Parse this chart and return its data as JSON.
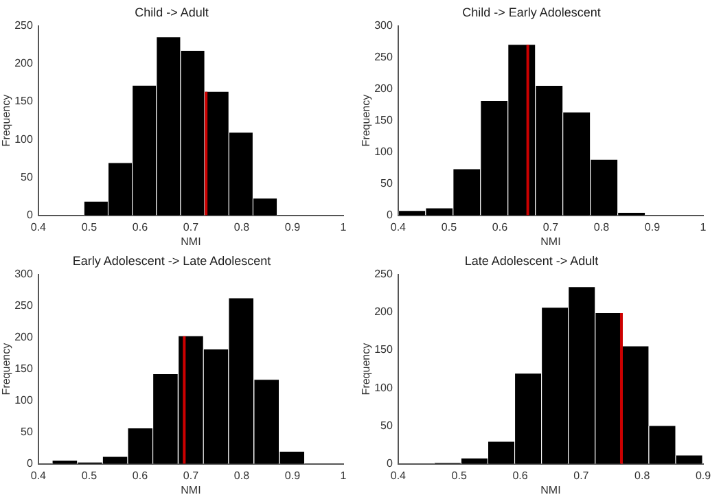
{
  "chart_data": [
    {
      "type": "histogram",
      "title": "Child -> Adult",
      "xlabel": "NMI",
      "ylabel": "Frequency",
      "color": "#000000",
      "bins": [
        0.49,
        0.537,
        0.585,
        0.632,
        0.68,
        0.727,
        0.775,
        0.822,
        0.87
      ],
      "values": [
        18,
        69,
        171,
        235,
        217,
        163,
        109,
        22
      ],
      "xlim": [
        0.4,
        1
      ],
      "xticks": [
        0.4,
        0.5,
        0.6,
        0.7,
        0.8,
        0.9,
        1
      ],
      "ylim": [
        0,
        250
      ],
      "yticks": [
        0,
        50,
        100,
        150,
        200,
        250
      ],
      "ref_lines": [
        {
          "axis": "x",
          "value": 0.73,
          "color": "#cc0000"
        }
      ],
      "grid": false,
      "legend": false
    },
    {
      "type": "histogram",
      "title": "Child -> Early Adolescent",
      "xlabel": "NMI",
      "ylabel": "Frequency",
      "color": "#000000",
      "bins": [
        0.4,
        0.454,
        0.508,
        0.562,
        0.616,
        0.67,
        0.724,
        0.778,
        0.832,
        0.886
      ],
      "values": [
        7,
        11,
        73,
        181,
        270,
        205,
        163,
        88,
        4
      ],
      "xlim": [
        0.4,
        1
      ],
      "xticks": [
        0.4,
        0.5,
        0.6,
        0.7,
        0.8,
        0.9,
        1
      ],
      "ylim": [
        0,
        300
      ],
      "yticks": [
        0,
        50,
        100,
        150,
        200,
        250,
        300
      ],
      "ref_lines": [
        {
          "axis": "x",
          "value": 0.655,
          "color": "#cc0000"
        }
      ],
      "grid": false,
      "legend": false
    },
    {
      "type": "histogram",
      "title": "Early Adolescent -> Late Adolescent",
      "xlabel": "NMI",
      "ylabel": "Frequency",
      "color": "#000000",
      "bins": [
        0.427,
        0.477,
        0.526,
        0.576,
        0.625,
        0.675,
        0.725,
        0.774,
        0.824,
        0.874,
        0.924
      ],
      "values": [
        5,
        2,
        11,
        56,
        142,
        202,
        181,
        262,
        133,
        19
      ],
      "xlim": [
        0.4,
        1
      ],
      "xticks": [
        0.4,
        0.5,
        0.6,
        0.7,
        0.8,
        0.9,
        1
      ],
      "ylim": [
        0,
        300
      ],
      "yticks": [
        0,
        50,
        100,
        150,
        200,
        250,
        300
      ],
      "ref_lines": [
        {
          "axis": "x",
          "value": 0.687,
          "color": "#cc0000"
        }
      ],
      "grid": false,
      "legend": false
    },
    {
      "type": "histogram",
      "title": "Late Adolescent -> Adult",
      "xlabel": "NMI",
      "ylabel": "Frequency",
      "color": "#000000",
      "bins": [
        0.459,
        0.503,
        0.547,
        0.591,
        0.635,
        0.679,
        0.723,
        0.767,
        0.811,
        0.855,
        0.899
      ],
      "values": [
        1,
        7,
        29,
        119,
        206,
        233,
        199,
        155,
        50,
        11
      ],
      "xlim": [
        0.4,
        0.9
      ],
      "xticks": [
        0.4,
        0.5,
        0.6,
        0.7,
        0.8,
        0.9
      ],
      "ylim": [
        0,
        250
      ],
      "yticks": [
        0,
        50,
        100,
        150,
        200,
        250
      ],
      "ref_lines": [
        {
          "axis": "x",
          "value": 0.766,
          "color": "#cc0000"
        }
      ],
      "grid": false,
      "legend": false
    }
  ]
}
